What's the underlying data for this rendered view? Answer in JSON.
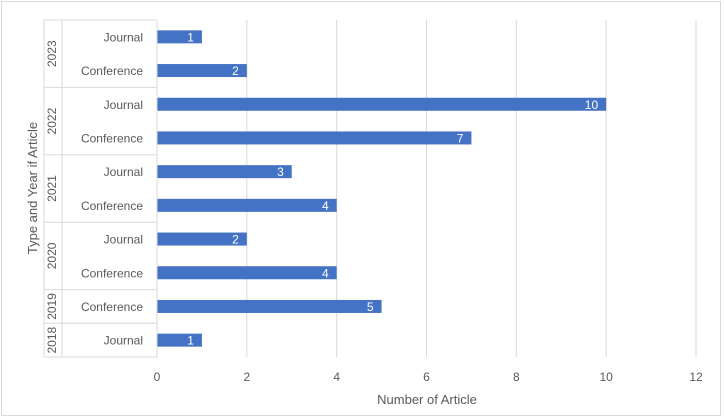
{
  "chart_data": {
    "type": "bar",
    "orientation": "horizontal",
    "xlabel": "Number of Article",
    "ylabel": "Type and Year if Article",
    "xlim": [
      0,
      12
    ],
    "xticks": [
      0,
      2,
      4,
      6,
      8,
      10,
      12
    ],
    "grid": true,
    "bar_color": "#4472c4",
    "groups": [
      {
        "year": "2023",
        "items": [
          {
            "type": "Journal",
            "value": 1
          },
          {
            "type": "Conference",
            "value": 2
          }
        ]
      },
      {
        "year": "2022",
        "items": [
          {
            "type": "Journal",
            "value": 10
          },
          {
            "type": "Conference",
            "value": 7
          }
        ]
      },
      {
        "year": "2021",
        "items": [
          {
            "type": "Journal",
            "value": 3
          },
          {
            "type": "Conference",
            "value": 4
          }
        ]
      },
      {
        "year": "2020",
        "items": [
          {
            "type": "Journal",
            "value": 2
          },
          {
            "type": "Conference",
            "value": 4
          }
        ]
      },
      {
        "year": "2019",
        "items": [
          {
            "type": "Conference",
            "value": 5
          }
        ]
      },
      {
        "year": "2018",
        "items": [
          {
            "type": "Journal",
            "value": 1
          }
        ]
      }
    ]
  }
}
